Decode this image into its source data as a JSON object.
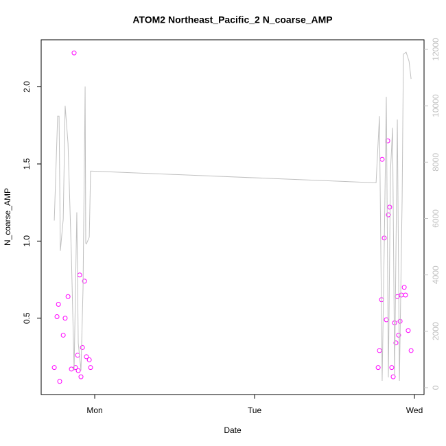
{
  "chart_data": {
    "type": "scatter",
    "title": "ATOM2 Northeast_Pacific_2 N_coarse_AMP",
    "x_label": "Date",
    "y_label": "N_coarse_AMP",
    "xlim": [
      -0.335,
      2.06
    ],
    "xticks": [
      {
        "value": 0,
        "label": "Mon"
      },
      {
        "value": 1,
        "label": "Tue"
      },
      {
        "value": 2,
        "label": "Wed"
      }
    ],
    "ylim": [
      0.005,
      2.305
    ],
    "yticks": [
      0.5,
      {
        "value": 1.0,
        "label": "1.0"
      },
      1.5,
      {
        "value": 2.0,
        "label": "2.0"
      }
    ],
    "y2lim": [
      -244,
      12341
    ],
    "y2ticks": [
      0,
      2000,
      4000,
      6000,
      8000,
      10000,
      12000
    ],
    "series": [
      {
        "type": "scatter",
        "color": "#ff00ff",
        "x": [
          -0.253,
          -0.236,
          -0.227,
          -0.219,
          -0.197,
          -0.185,
          -0.167,
          -0.146,
          -0.129,
          -0.12,
          -0.107,
          -0.103,
          -0.094,
          -0.086,
          -0.077,
          -0.064,
          -0.052,
          -0.034,
          -0.026,
          1.773,
          1.781,
          1.794,
          1.798,
          1.811,
          1.824,
          1.833,
          1.837,
          1.845,
          1.858,
          1.867,
          1.876,
          1.884,
          1.893,
          1.901,
          1.91,
          1.918,
          1.936,
          1.944,
          1.961,
          1.979
        ],
        "values": [
          0.18,
          0.51,
          0.59,
          0.09,
          0.39,
          0.5,
          0.64,
          0.17,
          2.22,
          0.18,
          0.26,
          0.16,
          0.78,
          0.12,
          0.31,
          0.74,
          0.25,
          0.23,
          0.18,
          0.18,
          0.29,
          0.62,
          1.53,
          1.02,
          0.49,
          1.65,
          1.17,
          1.22,
          0.18,
          0.12,
          0.47,
          0.34,
          0.64,
          0.39,
          0.48,
          0.65,
          0.7,
          0.65,
          0.42,
          0.29
        ]
      },
      {
        "type": "line",
        "axis": "y2",
        "color": "#c0c0c0",
        "x": [
          -0.253,
          -0.232,
          -0.223,
          -0.215,
          -0.197,
          -0.185,
          -0.167,
          -0.146,
          -0.129,
          -0.112,
          -0.103,
          -0.086,
          -0.073,
          -0.06,
          -0.056,
          -0.052,
          -0.034,
          -0.026,
          -0.017,
          1.76,
          1.781,
          1.798,
          1.811,
          1.824,
          1.837,
          1.85,
          1.863,
          1.876,
          1.893,
          1.906,
          1.923,
          1.931,
          1.948,
          1.966,
          1.979
        ],
        "values": [
          5927,
          9634,
          9634,
          4854,
          5976,
          10000,
          8659,
          4707,
          610,
          6220,
          1585,
          610,
          3537,
          10683,
          5122,
          5098,
          5341,
          7683,
          7683,
          7268,
          9634,
          244,
          5000,
          10317,
          366,
          7683,
          9220,
          415,
          9512,
          244,
          6707,
          11829,
          11902,
          11585,
          10951
        ]
      }
    ]
  }
}
